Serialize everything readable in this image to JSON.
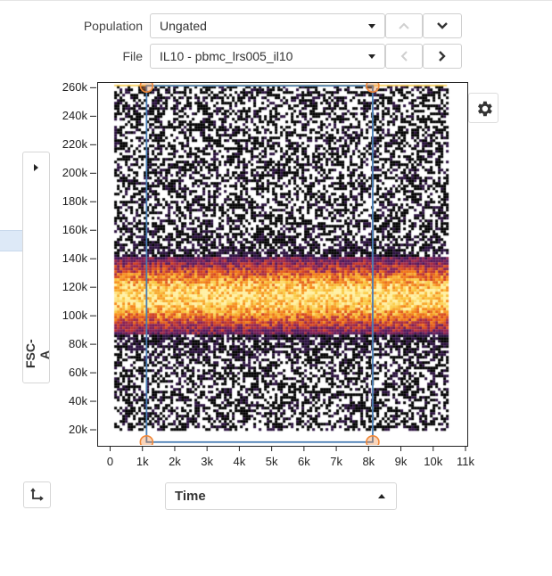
{
  "controls": {
    "population_label": "Population",
    "population_value": "Ungated",
    "file_label": "File",
    "file_value": "IL10 - pbmc_lrs005_il10"
  },
  "plot": {
    "x_axis_label": "Time",
    "y_axis_label": "FSC-A",
    "x_ticks": [
      "0",
      "1k",
      "2k",
      "3k",
      "4k",
      "5k",
      "6k",
      "7k",
      "8k",
      "9k",
      "10k",
      "11k"
    ],
    "y_ticks": [
      "20k",
      "40k",
      "60k",
      "80k",
      "100k",
      "120k",
      "140k",
      "160k",
      "180k",
      "200k",
      "220k",
      "240k",
      "260k"
    ],
    "colors": {
      "gate": "#4a7fb5",
      "handle": "#f0883a",
      "dense": "#f5c842"
    }
  },
  "chart_data": {
    "type": "heatmap",
    "xlabel": "Time",
    "ylabel": "FSC-A",
    "xlim": [
      -400,
      11000
    ],
    "ylim": [
      10000,
      264000
    ],
    "x_ticks": [
      0,
      1000,
      2000,
      3000,
      4000,
      5000,
      6000,
      7000,
      8000,
      9000,
      10000,
      11000
    ],
    "y_ticks": [
      20000,
      40000,
      60000,
      80000,
      100000,
      120000,
      140000,
      160000,
      180000,
      200000,
      220000,
      240000,
      260000
    ],
    "events_x_range": [
      100,
      10400
    ],
    "events_y_range": [
      20000,
      262000
    ],
    "density_peak_y": 115000,
    "gate": {
      "type": "rectangle",
      "x": [
        1100,
        8100
      ],
      "y": [
        12000,
        262000
      ]
    }
  },
  "icons": {
    "population_prev": "chevron-up-icon",
    "population_next": "chevron-down-icon",
    "file_prev": "chevron-left-icon",
    "file_next": "chevron-right-icon",
    "settings": "gear-icon",
    "expand": "caret-right-icon",
    "swap_axes": "swap-axes-icon"
  }
}
